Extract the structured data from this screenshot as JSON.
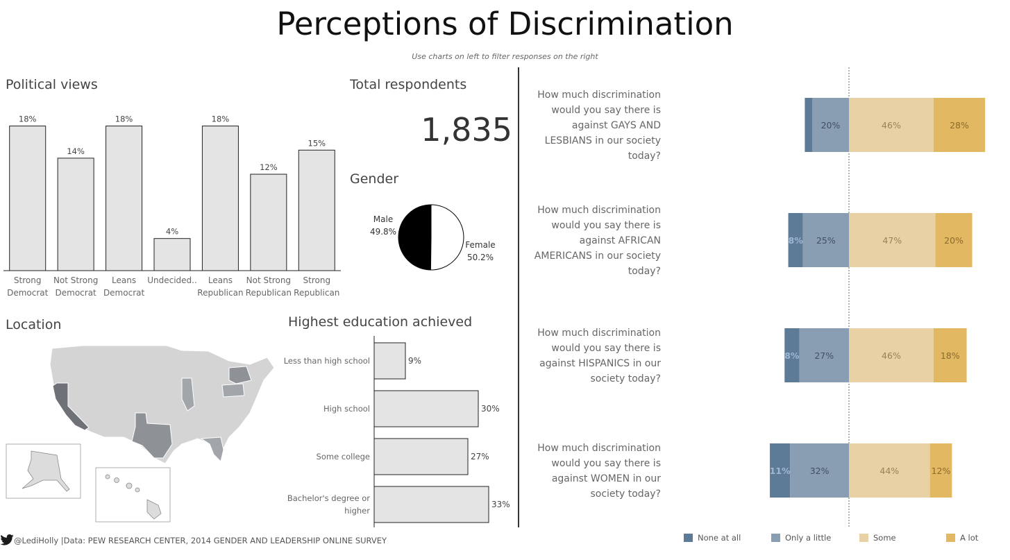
{
  "title": "Perceptions of Discrimination",
  "subtitle": "Use charts on left to filter responses on the right",
  "political": {
    "title": "Political views",
    "chart_data": {
      "type": "bar",
      "categories": [
        [
          "Strong",
          "Democrat"
        ],
        [
          "Not Strong",
          "Democrat"
        ],
        [
          "Leans",
          "Democrat"
        ],
        [
          "Undecided.."
        ],
        [
          "Leans",
          "Republican"
        ],
        [
          "Not Strong",
          "Republican"
        ],
        [
          "Strong",
          "Republican"
        ]
      ],
      "values": [
        18,
        14,
        18,
        4,
        18,
        12,
        15
      ],
      "labels": [
        "18%",
        "14%",
        "18%",
        "4%",
        "18%",
        "12%",
        "15%"
      ],
      "ylim": [
        0,
        19
      ]
    }
  },
  "total": {
    "title": "Total respondents",
    "value": "1,835"
  },
  "gender": {
    "title": "Gender",
    "chart_data": {
      "type": "pie",
      "slices": [
        {
          "name": "Male",
          "value": 49.8,
          "label": "49.8%",
          "color": "#000000"
        },
        {
          "name": "Female",
          "value": 50.2,
          "label": "50.2%",
          "color": "#ffffff"
        }
      ]
    }
  },
  "location": {
    "title": "Location"
  },
  "education": {
    "title": "Highest education achieved",
    "chart_data": {
      "type": "bar",
      "orientation": "horizontal",
      "categories": [
        [
          "Less than high school"
        ],
        [
          "High school"
        ],
        [
          "Some college"
        ],
        [
          "Bachelor's degree or",
          "higher"
        ]
      ],
      "values": [
        9,
        30,
        27,
        33
      ],
      "labels": [
        "9%",
        "30%",
        "27%",
        "33%"
      ],
      "xlim": [
        0,
        35
      ]
    }
  },
  "questions": {
    "chart_data": {
      "type": "bar",
      "orientation": "horizontal",
      "stacked": "diverging",
      "series": [
        {
          "name": "None at all",
          "color": "#5d7a96"
        },
        {
          "name": "Only a little",
          "color": "#8a9eb3"
        },
        {
          "name": "Some",
          "color": "#e8d1a4"
        },
        {
          "name": "A lot",
          "color": "#e3b862"
        }
      ],
      "items": [
        {
          "question": [
            "How much discrimination",
            "would you say there is",
            "against GAYS AND",
            "LESBIANS in our society",
            "today?"
          ],
          "values": [
            4,
            20,
            46,
            28
          ],
          "labels": [
            "",
            "20%",
            "46%",
            "28%"
          ]
        },
        {
          "question": [
            "How much discrimination",
            "would you say there is",
            "against AFRICAN",
            "AMERICANS in our society",
            "today?"
          ],
          "values": [
            8,
            25,
            47,
            20
          ],
          "labels": [
            "8%",
            "25%",
            "47%",
            "20%"
          ]
        },
        {
          "question": [
            "How much discrimination",
            "would you say there is",
            "against HISPANICS in our",
            "society today?"
          ],
          "values": [
            8,
            27,
            46,
            18
          ],
          "labels": [
            "8%",
            "27%",
            "46%",
            "18%"
          ]
        },
        {
          "question": [
            "How much discrimination",
            "would you say there is",
            "against WOMEN in our",
            "society today?"
          ],
          "values": [
            11,
            32,
            44,
            12
          ],
          "labels": [
            "11%",
            "32%",
            "44%",
            "12%"
          ]
        }
      ]
    }
  },
  "legend": [
    {
      "label": "None at all",
      "color": "#5d7a96"
    },
    {
      "label": "Only a little",
      "color": "#8a9eb3"
    },
    {
      "label": "Some",
      "color": "#e8d1a4"
    },
    {
      "label": "A lot",
      "color": "#e3b862"
    }
  ],
  "footer": {
    "handle": "@LediHolly",
    "source": " |Data: PEW RESEARCH CENTER, 2014 GENDER AND LEADERSHIP ONLINE SURVEY",
    "icon": "twitter-bird-icon"
  }
}
